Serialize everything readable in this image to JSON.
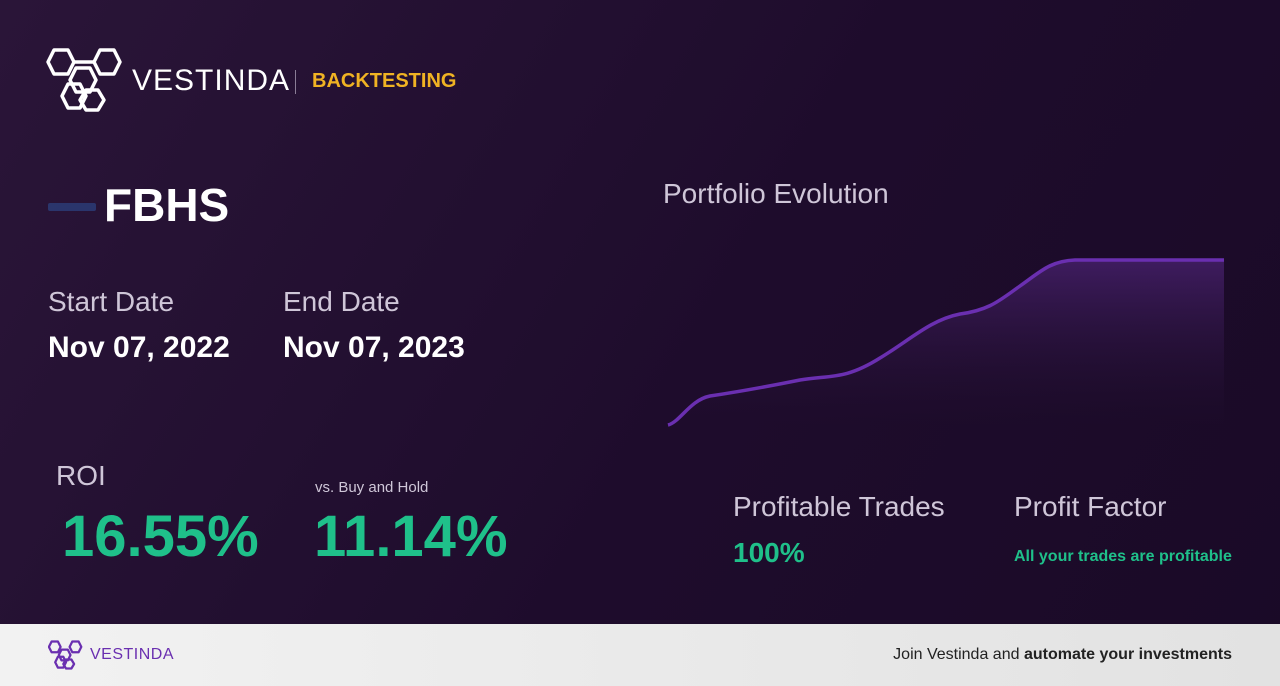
{
  "header": {
    "brand": "VESTINDA",
    "section": "BACKTESTING"
  },
  "asset": {
    "ticker": "FBHS"
  },
  "period": {
    "start_label": "Start Date",
    "start_date": "Nov 07, 2022",
    "end_label": "End Date",
    "end_date": "Nov 07, 2023"
  },
  "metrics": {
    "roi_label": "ROI",
    "roi": "16.55%",
    "vs_label": "vs. Buy and Hold",
    "vs_buy_hold": "11.14%"
  },
  "portfolio": {
    "title": "Portfolio Evolution"
  },
  "stats": {
    "profitable_label": "Profitable Trades",
    "profitable_trades": "100%",
    "factor_label": "Profit Factor",
    "profit_factor": "All your trades are profitable"
  },
  "footer": {
    "brand": "VESTINDA",
    "cta_text": "Join Vestinda and ",
    "cta_bold": "automate your investments"
  }
}
